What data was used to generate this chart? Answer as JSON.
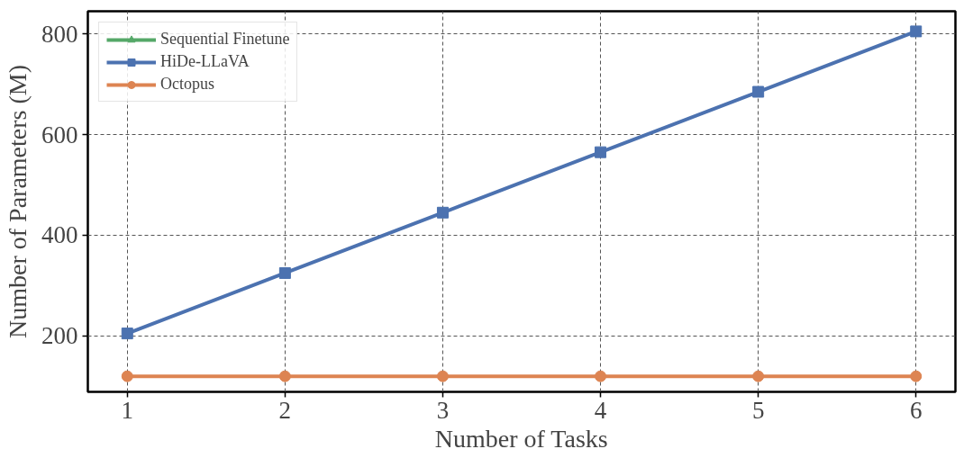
{
  "chart_data": {
    "type": "line",
    "xlabel": "Number of Tasks",
    "ylabel": "Number of Parameters (M)",
    "x": [
      1,
      2,
      3,
      4,
      5,
      6
    ],
    "series": [
      {
        "name": "Sequential Finetune",
        "color": "#55a868",
        "marker": "triangle",
        "values": [
          null,
          null,
          null,
          null,
          null,
          null
        ]
      },
      {
        "name": "HiDe-LLaVA",
        "color": "#4c72b0",
        "marker": "square",
        "values": [
          205,
          325,
          445,
          565,
          685,
          805
        ]
      },
      {
        "name": "Octopus",
        "color": "#dd8452",
        "marker": "circle",
        "values": [
          120,
          120,
          120,
          120,
          120,
          120
        ]
      }
    ],
    "xlim": [
      0.75,
      6.25
    ],
    "xticks": [
      1,
      2,
      3,
      4,
      5,
      6
    ],
    "ylim": [
      89,
      845
    ],
    "yticks": [
      200,
      400,
      600,
      800
    ],
    "grid": true,
    "legend": "top left",
    "line_style": "solid"
  }
}
